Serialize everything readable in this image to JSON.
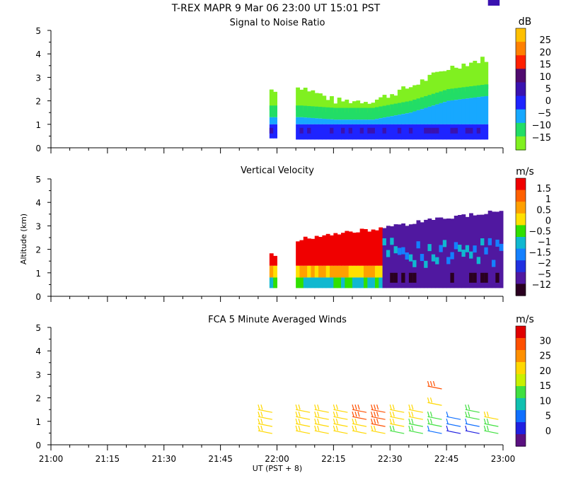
{
  "title": "T-REX   MAPR   9 Mar 06   23:00 UT   15:01   PST",
  "x_axis": {
    "label": "UT  (PST + 8)",
    "ticks": [
      "21:00",
      "21:15",
      "21:30",
      "21:45",
      "22:00",
      "22:15",
      "22:30",
      "22:45",
      "23:00"
    ],
    "range_minutes": [
      0,
      120
    ]
  },
  "y_axis": {
    "label": "Altitude (km)",
    "ticks": [
      "0",
      "1",
      "2",
      "3",
      "4",
      "5"
    ],
    "range_km": [
      0,
      5
    ]
  },
  "panels": [
    {
      "title": "Signal to Noise Ratio",
      "unit": "dB",
      "colorbar": {
        "labels": [
          "25",
          "20",
          "15",
          "10",
          "5",
          "0",
          "−5",
          "−10",
          "−15"
        ],
        "colors": [
          "#ffc000",
          "#ff8000",
          "#ff2000",
          "#500a6e",
          "#3a12b0",
          "#1e24ff",
          "#17a8ff",
          "#22dd66",
          "#80f020"
        ]
      }
    },
    {
      "title": "Vertical Velocity",
      "unit": "m/s",
      "colorbar": {
        "labels": [
          "1.5",
          "1",
          "0.5",
          "0",
          "−0.5",
          "−1",
          "−1.5",
          "−2",
          "−5",
          "−12"
        ],
        "colors": [
          "#f00000",
          "#ff6000",
          "#ffa000",
          "#ffe000",
          "#30e000",
          "#10b8d0",
          "#1480ff",
          "#2030e0",
          "#5018a0",
          "#2a0020"
        ]
      }
    },
    {
      "title": "FCA 5 Minute Averaged Winds",
      "unit": "m/s",
      "colorbar": {
        "labels": [
          "30",
          "25",
          "20",
          "15",
          "10",
          "5",
          "0"
        ],
        "colors": [
          "#e00000",
          "#ff5000",
          "#ff9000",
          "#ffd800",
          "#c8f000",
          "#40e040",
          "#10c0b0",
          "#1070ff",
          "#2020e0",
          "#5a1080"
        ]
      }
    }
  ],
  "chart_data": [
    {
      "type": "heatmap",
      "title": "Signal to Noise Ratio",
      "units": "dB",
      "xlabel": "UT  (PST + 8)",
      "ylabel": "Altitude (km)",
      "xlim": [
        "21:00",
        "23:00"
      ],
      "ylim": [
        0,
        5
      ],
      "levels": [
        -15,
        -10,
        -5,
        0,
        5,
        10,
        15,
        20,
        25
      ],
      "coverage_segments": [
        {
          "start_min": 58,
          "end_min": 60,
          "bottom_km": 0.4,
          "top_km": 2.6
        },
        {
          "start_min": 65,
          "end_min": 120,
          "bottom_km": 0.35,
          "top_km_start": 2.6,
          "top_km_end": 3.9
        }
      ],
      "sampled_columns": [
        {
          "t_min": 59,
          "low_km": 0.9,
          "mid_km": 1.6,
          "top_km": 2.5
        },
        {
          "t_min": 66,
          "low_km": 0.9,
          "mid_km": 1.6,
          "top_km": 2.6
        },
        {
          "t_min": 75,
          "low_km": 0.9,
          "mid_km": 1.5,
          "top_km": 2.0
        },
        {
          "t_min": 85,
          "low_km": 0.9,
          "mid_km": 1.5,
          "top_km": 2.0
        },
        {
          "t_min": 95,
          "low_km": 0.9,
          "mid_km": 1.8,
          "top_km": 2.6
        },
        {
          "t_min": 105,
          "low_km": 0.9,
          "mid_km": 2.3,
          "top_km": 3.4
        },
        {
          "t_min": 115,
          "low_km": 0.9,
          "mid_km": 2.5,
          "top_km": 3.8
        }
      ],
      "dominant_levels_by_height": [
        {
          "height_km": 0.7,
          "dB": 0
        },
        {
          "height_km": 1.3,
          "dB": -5
        },
        {
          "height_km": 2.0,
          "dB": -10
        },
        {
          "height_km": 3.0,
          "dB": -15
        }
      ]
    },
    {
      "type": "heatmap",
      "title": "Vertical Velocity",
      "units": "m/s",
      "xlabel": "UT  (PST + 8)",
      "ylabel": "Altitude (km)",
      "xlim": [
        "21:00",
        "23:00"
      ],
      "ylim": [
        0,
        5
      ],
      "levels": [
        -12,
        -5,
        -2,
        -1.5,
        -1,
        -0.5,
        0,
        0.5,
        1,
        1.5
      ],
      "coverage_segments": [
        {
          "start_min": 58,
          "end_min": 60,
          "bottom_km": 0.4,
          "top_km": 1.8
        },
        {
          "start_min": 65,
          "end_min": 120,
          "bottom_km": 0.35,
          "top_km_start": 2.4,
          "top_km_end": 3.7
        }
      ],
      "regimes": [
        {
          "from_min": 58,
          "to_min": 88,
          "low_layer_m_s": 0.5,
          "upper_layer_m_s": 1.5
        },
        {
          "from_min": 88,
          "to_min": 120,
          "low_layer_m_s": -1,
          "upper_layer_m_s": -5
        }
      ]
    },
    {
      "type": "scatter",
      "title": "FCA 5 Minute Averaged Winds",
      "units": "m/s",
      "xlabel": "UT  (PST + 8)",
      "ylabel": "Altitude (km)",
      "xlim": [
        "21:00",
        "23:00"
      ],
      "ylim": [
        0,
        5
      ],
      "barb_profiles": [
        {
          "time": "21:55",
          "heights_km": [
            0.6,
            0.9,
            1.2,
            1.5
          ],
          "speeds_m_s": [
            20,
            20,
            20,
            20
          ]
        },
        {
          "time": "22:05",
          "heights_km": [
            0.6,
            0.9,
            1.2,
            1.5
          ],
          "speeds_m_s": [
            20,
            20,
            20,
            20
          ]
        },
        {
          "time": "22:10",
          "heights_km": [
            0.6,
            0.9,
            1.2,
            1.5
          ],
          "speeds_m_s": [
            20,
            20,
            20,
            20
          ]
        },
        {
          "time": "22:15",
          "heights_km": [
            0.6,
            0.9,
            1.2,
            1.5
          ],
          "speeds_m_s": [
            20,
            20,
            20,
            20
          ]
        },
        {
          "time": "22:20",
          "heights_km": [
            0.6,
            0.9,
            1.2,
            1.5
          ],
          "speeds_m_s": [
            20,
            20,
            25,
            25
          ]
        },
        {
          "time": "22:25",
          "heights_km": [
            0.6,
            0.9,
            1.2,
            1.5
          ],
          "speeds_m_s": [
            20,
            25,
            25,
            25
          ]
        },
        {
          "time": "22:30",
          "heights_km": [
            0.6,
            0.9,
            1.2,
            1.5
          ],
          "speeds_m_s": [
            15,
            20,
            20,
            20
          ]
        },
        {
          "time": "22:35",
          "heights_km": [
            0.6,
            0.9,
            1.2,
            1.5
          ],
          "speeds_m_s": [
            15,
            15,
            20,
            20
          ]
        },
        {
          "time": "22:40",
          "heights_km": [
            0.6,
            0.9,
            1.2,
            1.8,
            2.5
          ],
          "speeds_m_s": [
            10,
            15,
            15,
            20,
            25
          ]
        },
        {
          "time": "22:45",
          "heights_km": [
            0.6,
            0.9,
            1.2
          ],
          "speeds_m_s": [
            5,
            10,
            10
          ]
        },
        {
          "time": "22:50",
          "heights_km": [
            0.6,
            0.9,
            1.2,
            1.5
          ],
          "speeds_m_s": [
            5,
            10,
            15,
            15
          ]
        },
        {
          "time": "22:55",
          "heights_km": [
            0.6,
            0.9,
            1.2
          ],
          "speeds_m_s": [
            15,
            15,
            20
          ]
        }
      ]
    }
  ]
}
